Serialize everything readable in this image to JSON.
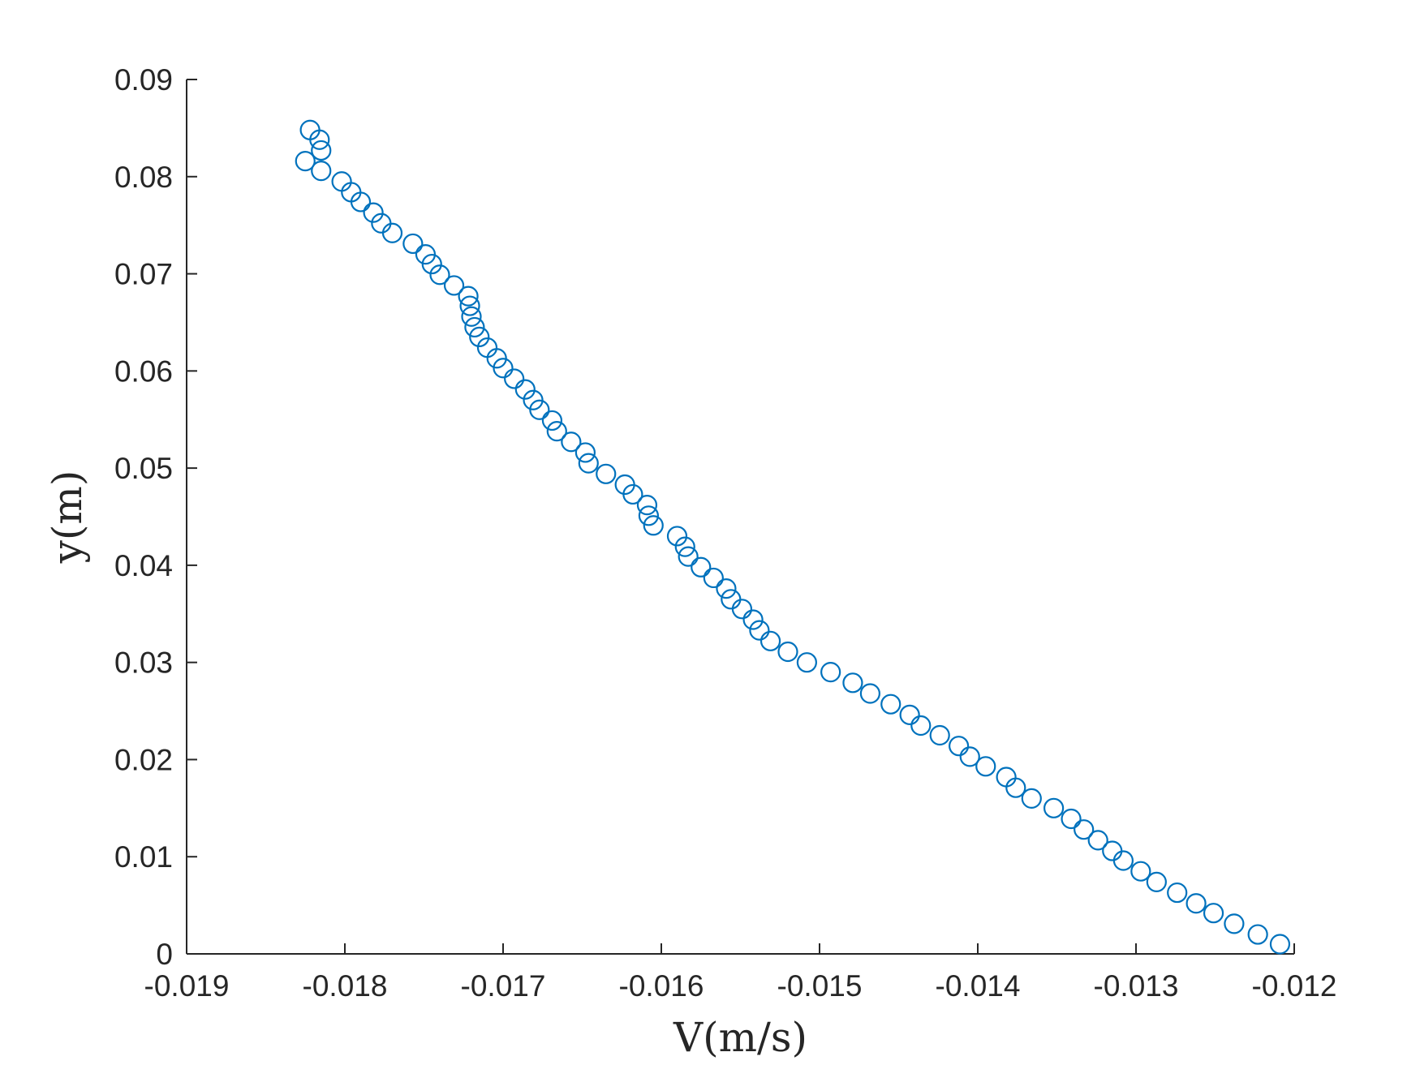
{
  "chart_data": {
    "type": "scatter",
    "title": "",
    "xlabel": "V(m/s)",
    "ylabel": "y(m)",
    "xlim": [
      -0.019,
      -0.012
    ],
    "ylim": [
      0,
      0.09
    ],
    "xticks": [
      -0.019,
      -0.018,
      -0.017,
      -0.016,
      -0.015,
      -0.014,
      -0.013,
      -0.012
    ],
    "xtick_labels": [
      "-0.019",
      "-0.018",
      "-0.017",
      "-0.016",
      "-0.015",
      "-0.014",
      "-0.013",
      "-0.012"
    ],
    "yticks": [
      0,
      0.01,
      0.02,
      0.03,
      0.04,
      0.05,
      0.06,
      0.07,
      0.08,
      0.09
    ],
    "ytick_labels": [
      "0",
      "0.01",
      "0.02",
      "0.03",
      "0.04",
      "0.05",
      "0.06",
      "0.07",
      "0.08",
      "0.09"
    ],
    "grid": false,
    "marker": "open-circle",
    "color": "#0072BD",
    "series": [
      {
        "points": [
          [
            -0.01822,
            0.0848
          ],
          [
            -0.01816,
            0.0838
          ],
          [
            -0.01815,
            0.0827
          ],
          [
            -0.01825,
            0.0816
          ],
          [
            -0.01815,
            0.0806
          ],
          [
            -0.01802,
            0.0795
          ],
          [
            -0.01796,
            0.0784
          ],
          [
            -0.0179,
            0.0774
          ],
          [
            -0.01782,
            0.0763
          ],
          [
            -0.01777,
            0.0752
          ],
          [
            -0.0177,
            0.0742
          ],
          [
            -0.01757,
            0.0731
          ],
          [
            -0.01749,
            0.072
          ],
          [
            -0.01745,
            0.071
          ],
          [
            -0.0174,
            0.0699
          ],
          [
            -0.01731,
            0.0688
          ],
          [
            -0.01722,
            0.0677
          ],
          [
            -0.01721,
            0.0667
          ],
          [
            -0.0172,
            0.0656
          ],
          [
            -0.01718,
            0.0645
          ],
          [
            -0.01715,
            0.0635
          ],
          [
            -0.0171,
            0.0624
          ],
          [
            -0.01704,
            0.0613
          ],
          [
            -0.017,
            0.0603
          ],
          [
            -0.01693,
            0.0592
          ],
          [
            -0.01686,
            0.0581
          ],
          [
            -0.01681,
            0.057
          ],
          [
            -0.01677,
            0.056
          ],
          [
            -0.01669,
            0.0549
          ],
          [
            -0.01666,
            0.0538
          ],
          [
            -0.01657,
            0.0527
          ],
          [
            -0.01648,
            0.0516
          ],
          [
            -0.01646,
            0.0505
          ],
          [
            -0.01635,
            0.0494
          ],
          [
            -0.01623,
            0.0483
          ],
          [
            -0.01618,
            0.0473
          ],
          [
            -0.01609,
            0.0462
          ],
          [
            -0.01608,
            0.0451
          ],
          [
            -0.01605,
            0.0441
          ],
          [
            -0.0159,
            0.043
          ],
          [
            -0.01585,
            0.0419
          ],
          [
            -0.01583,
            0.0409
          ],
          [
            -0.01575,
            0.0398
          ],
          [
            -0.01567,
            0.0387
          ],
          [
            -0.01559,
            0.0376
          ],
          [
            -0.01556,
            0.0365
          ],
          [
            -0.01549,
            0.0355
          ],
          [
            -0.01542,
            0.0344
          ],
          [
            -0.01538,
            0.0333
          ],
          [
            -0.01531,
            0.0322
          ],
          [
            -0.0152,
            0.0311
          ],
          [
            -0.01508,
            0.03
          ],
          [
            -0.01493,
            0.029
          ],
          [
            -0.01479,
            0.0279
          ],
          [
            -0.01468,
            0.0268
          ],
          [
            -0.01455,
            0.0257
          ],
          [
            -0.01443,
            0.0246
          ],
          [
            -0.01436,
            0.0235
          ],
          [
            -0.01424,
            0.0225
          ],
          [
            -0.01412,
            0.0214
          ],
          [
            -0.01405,
            0.0203
          ],
          [
            -0.01395,
            0.0193
          ],
          [
            -0.01382,
            0.0182
          ],
          [
            -0.01376,
            0.0171
          ],
          [
            -0.01366,
            0.016
          ],
          [
            -0.01352,
            0.015
          ],
          [
            -0.01341,
            0.0139
          ],
          [
            -0.01333,
            0.0128
          ],
          [
            -0.01324,
            0.0117
          ],
          [
            -0.01315,
            0.0106
          ],
          [
            -0.01308,
            0.0096
          ],
          [
            -0.01297,
            0.0085
          ],
          [
            -0.01287,
            0.0074
          ],
          [
            -0.01274,
            0.0063
          ],
          [
            -0.01262,
            0.0052
          ],
          [
            -0.01251,
            0.0042
          ],
          [
            -0.01238,
            0.0031
          ],
          [
            -0.01223,
            0.002
          ],
          [
            -0.01209,
            0.001
          ]
        ]
      }
    ]
  }
}
